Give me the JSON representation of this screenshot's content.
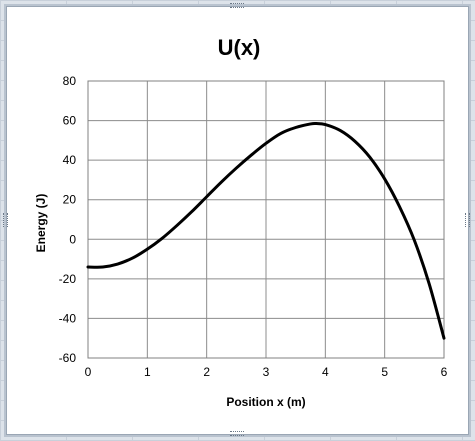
{
  "chart_data": {
    "type": "line",
    "title": "U(x)",
    "xlabel": "Position x (m)",
    "ylabel": "Energy (J)",
    "xlim": [
      0,
      6
    ],
    "ylim": [
      -60,
      80
    ],
    "x_ticks": [
      "0",
      "1",
      "2",
      "3",
      "4",
      "5",
      "6"
    ],
    "y_ticks": [
      "80",
      "60",
      "40",
      "20",
      "0",
      "-20",
      "-40",
      "-60"
    ],
    "grid": true,
    "legend": "none",
    "series": [
      {
        "color": "#000000",
        "x": [
          0,
          0.25,
          0.5,
          0.75,
          1,
          1.25,
          1.5,
          1.75,
          2,
          2.25,
          2.5,
          2.75,
          3,
          3.25,
          3.5,
          3.75,
          3.85,
          4,
          4.25,
          4.5,
          4.75,
          5,
          5.25,
          5.5,
          5.75,
          6
        ],
        "y": [
          -14,
          -14,
          -12.5,
          -9.5,
          -5,
          0.5,
          7,
          14,
          21.5,
          29,
          36,
          42.5,
          48.5,
          53.5,
          56.5,
          58.3,
          58.5,
          58,
          55,
          49.5,
          41.5,
          30.5,
          16.5,
          -0.5,
          -22.5,
          -50
        ]
      }
    ]
  }
}
